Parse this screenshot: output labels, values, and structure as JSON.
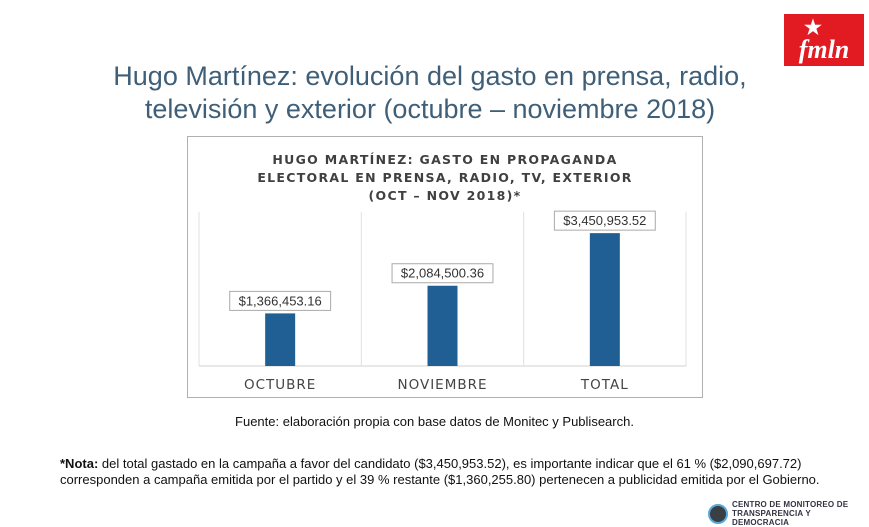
{
  "slide": {
    "title_line1": "Hugo Martínez: evolución del gasto en prensa, radio,",
    "title_line2": "televisión y exterior (octubre – noviembre 2018)",
    "logo_text": "fmln",
    "source": "Fuente: elaboración propia con base datos de Monitec y Publisearch.",
    "note_label": "*Nota:",
    "note_text": " del total gastado en la campaña a favor del candidato ($3,450,953.52), es importante indicar que el 61 % ($2,090,697.72) corresponden a campaña emitida por el partido y el 39 % restante ($1,360,255.80) pertenecen a publicidad emitida por el Gobierno.",
    "footer_logo_text": "CENTRO DE MONITOREO DE TRANSPARENCIA Y DEMOCRACIA"
  },
  "colors": {
    "bar": "#1f5f94",
    "title": "#3f5f78",
    "logo_bg": "#e21b23"
  },
  "chart_data": {
    "type": "bar",
    "title_lines": [
      "HUGO MARTÍNEZ: GASTO EN PROPAGANDA",
      "ELECTORAL EN PRENSA, RADIO, TV, EXTERIOR",
      "(OCT – NOV 2018)*"
    ],
    "categories": [
      "OCTUBRE",
      "NOVIEMBRE",
      "TOTAL"
    ],
    "values": [
      1366453.16,
      2084500.36,
      3450953.52
    ],
    "data_labels": [
      "$1,366,453.16",
      "$2,084,500.36",
      "$3,450,953.52"
    ],
    "ylim": [
      0,
      4000000
    ],
    "grid": "vertical category separators",
    "legend": "none"
  }
}
